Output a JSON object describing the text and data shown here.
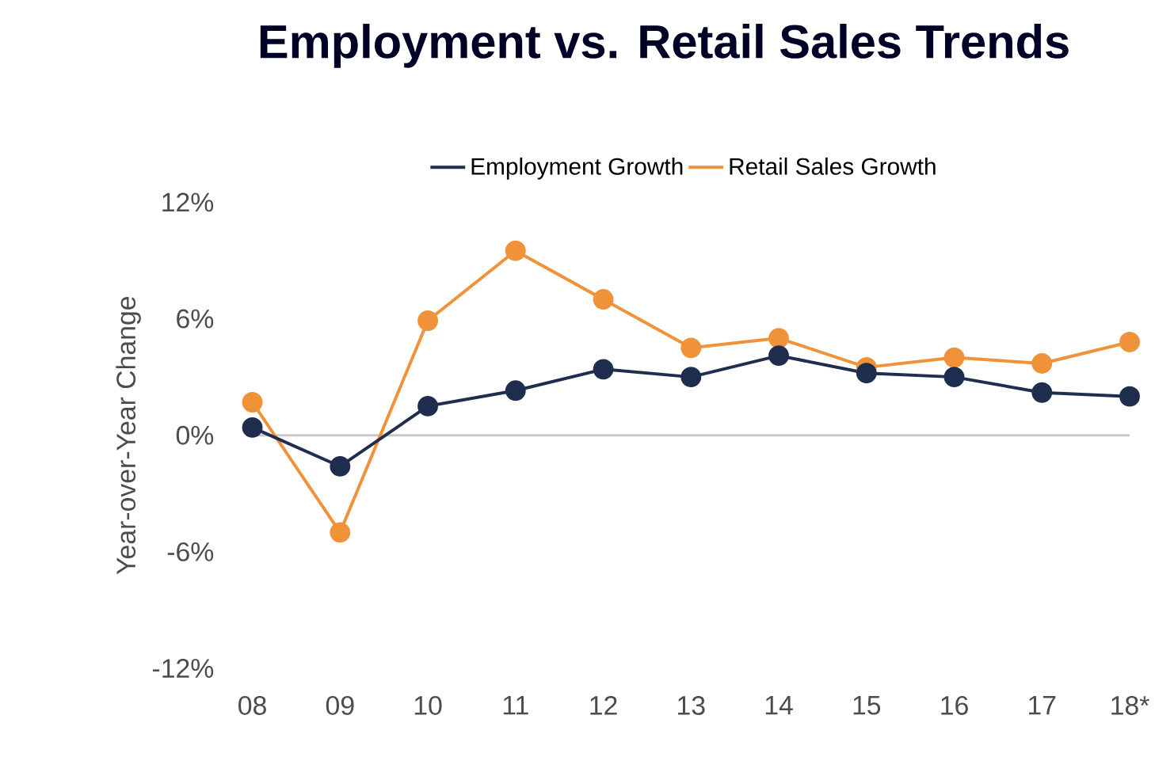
{
  "chart_data": {
    "type": "line",
    "title": "Employment vs. Retail Sales Trends",
    "ylabel": "Year-over-Year Change",
    "categories": [
      "08",
      "09",
      "10",
      "11",
      "12",
      "13",
      "14",
      "15",
      "16",
      "17",
      "18*"
    ],
    "series": [
      {
        "name": "Employment Growth",
        "color": "#1f2d4e",
        "values": [
          0.4,
          -1.6,
          1.5,
          2.3,
          3.4,
          3.0,
          4.1,
          3.2,
          3.0,
          2.2,
          2.0
        ]
      },
      {
        "name": "Retail Sales Growth",
        "color": "#f0923a",
        "values": [
          1.7,
          -5.0,
          5.9,
          9.5,
          7.0,
          4.5,
          5.0,
          3.5,
          4.0,
          3.7,
          4.8
        ]
      }
    ],
    "ylim": [
      -12,
      12
    ],
    "yticks": [
      {
        "value": -12,
        "label": "-12%"
      },
      {
        "value": -6,
        "label": "-6%"
      },
      {
        "value": 0,
        "label": "0%"
      },
      {
        "value": 6,
        "label": "6%"
      },
      {
        "value": 12,
        "label": "12%"
      }
    ],
    "ref_lines": [
      {
        "axis": "y",
        "value": 0,
        "color": "#c8c8c8"
      }
    ],
    "grid": false,
    "legend": "top",
    "marker": "circle",
    "line_style": "solid"
  }
}
